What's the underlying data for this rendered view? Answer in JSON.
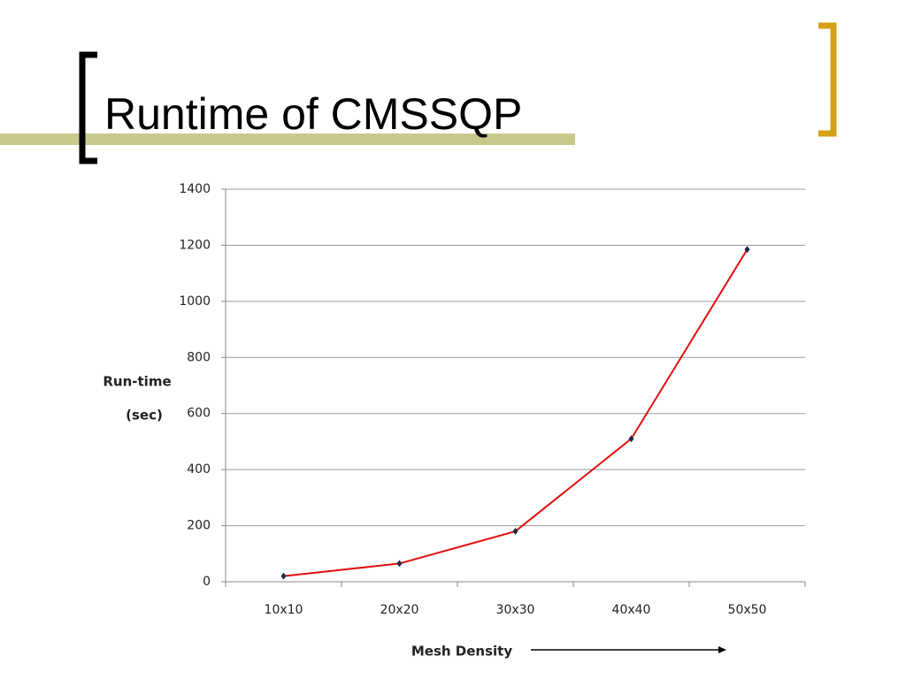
{
  "chart_data": {
    "type": "line",
    "title": "Runtime of CMSSQP",
    "categories": [
      "10x10",
      "20x20",
      "30x30",
      "40x40",
      "50x50"
    ],
    "series": [
      {
        "name": "Run-time",
        "color": "#e01010",
        "marker_color": "#1a2a4a",
        "values": [
          20,
          65,
          180,
          510,
          1185
        ]
      }
    ],
    "ylim": [
      0,
      1400
    ],
    "yticks": [
      0,
      200,
      400,
      600,
      800,
      1000,
      1200,
      1400
    ],
    "grid": true,
    "ylabel_lines": [
      "Run-time",
      "(sec)"
    ],
    "xlabel": "Mesh Density",
    "legend": false
  }
}
